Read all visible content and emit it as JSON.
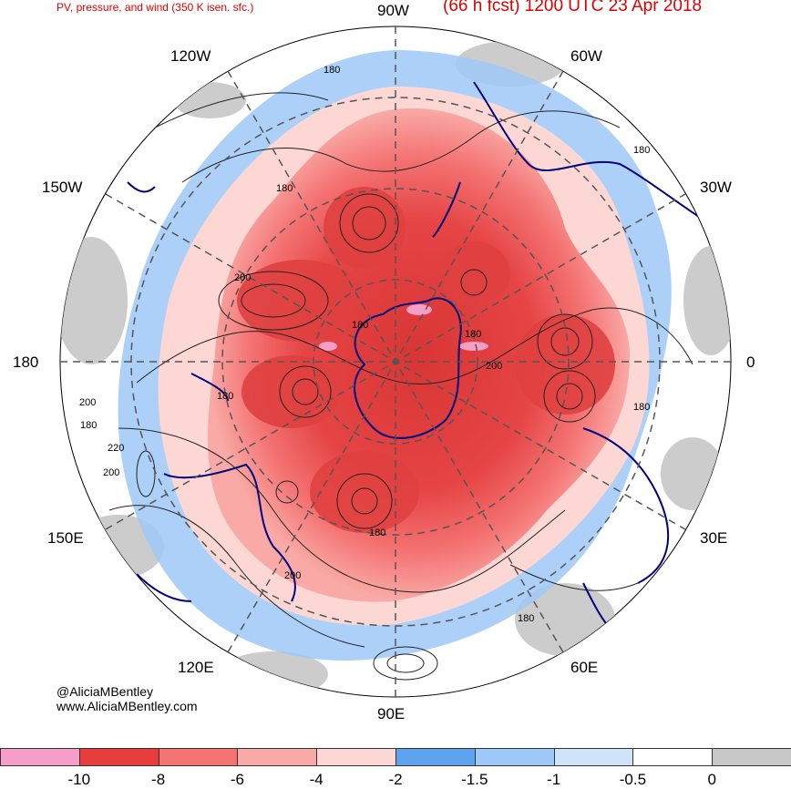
{
  "header": {
    "left_title": "PV, pressure, and wind (350 K isen. sfc.)",
    "right_title": "(66 h fcst) 1200 UTC 23 Apr 2018"
  },
  "longitude_labels": {
    "lon_90w": "90W",
    "lon_60w": "60W",
    "lon_30w": "30W",
    "lon_0": "0",
    "lon_30e": "30E",
    "lon_60e": "60E",
    "lon_90e": "90E",
    "lon_120e": "120E",
    "lon_150e": "150E",
    "lon_180": "180",
    "lon_150w": "150W",
    "lon_120w": "120W"
  },
  "contour_labels": [
    "180",
    "180",
    "180",
    "200",
    "180",
    "180",
    "200",
    "180",
    "180",
    "180",
    "200",
    "220",
    "200",
    "180",
    "200",
    "180"
  ],
  "credits": {
    "handle": "@AliciaMBentley",
    "website": "www.AliciaMBentley.com"
  },
  "colorbar": {
    "colors": [
      "#f59fc8",
      "#e63c3c",
      "#f47373",
      "#f9aaa6",
      "#fdd7d3",
      "#5ea3ee",
      "#9dc8f7",
      "#cfe3fb",
      "#ffffff",
      "#c7c7c7"
    ],
    "tick_labels": [
      "-10",
      "-8",
      "-6",
      "-4",
      "-2",
      "-1.5",
      "-1",
      "-0.5",
      "0"
    ]
  },
  "map_colors": {
    "strong_negative": "#e63c3c",
    "moderate_negative": "#f47373",
    "weak_negative": "#fdd7d3",
    "light_blue": "#9dc8f7",
    "gray": "#c7c7c7",
    "coastline": "#000080",
    "contour": "#222222"
  }
}
